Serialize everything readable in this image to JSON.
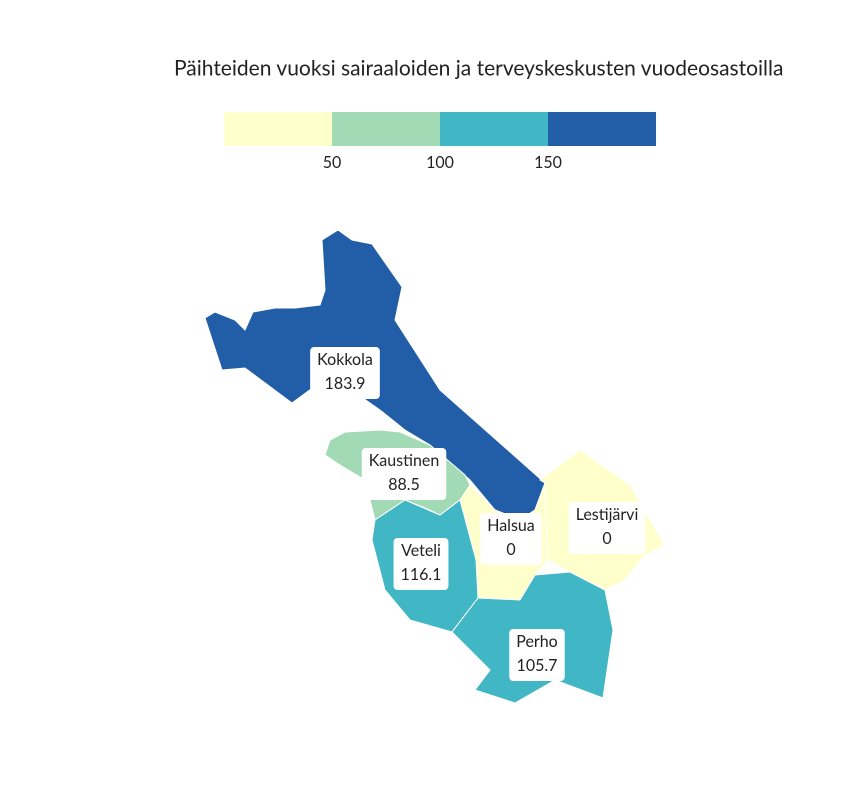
{
  "chart_data": {
    "type": "choropleth",
    "title": "Päihteiden vuoksi sairaaloiden ja terveyskeskusten vuodeosastoilla",
    "legend": {
      "lim": [
        0,
        200
      ],
      "ticks": [
        50,
        100,
        150
      ],
      "colors": [
        "#ffffcc",
        "#a1dab4",
        "#41b6c4",
        "#225ea8"
      ]
    },
    "regions": [
      "Kokkola",
      "Kaustinen",
      "Halsua",
      "Lestijärvi",
      "Veteli",
      "Perho"
    ],
    "values": [
      183.9,
      88.5,
      0,
      0,
      116.1,
      105.7
    ]
  }
}
